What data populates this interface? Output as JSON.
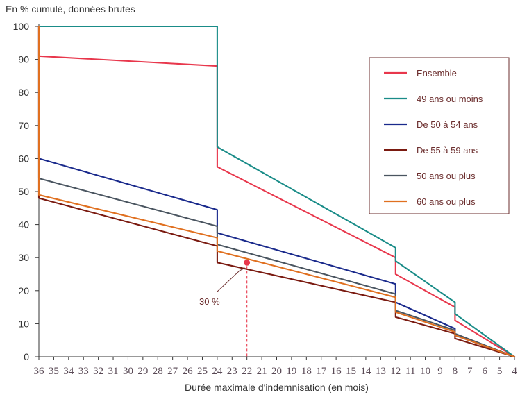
{
  "chart_data": {
    "type": "line",
    "title": "",
    "ylabel": "En % cumulé, données brutes",
    "xlabel": "Durée maximale d'indemnisation (en mois)",
    "ylim": [
      0,
      100
    ],
    "yticks": [
      0,
      10,
      20,
      30,
      40,
      50,
      60,
      70,
      80,
      90,
      100
    ],
    "xlim": [
      36,
      4
    ],
    "xticks": [
      36,
      35,
      34,
      33,
      32,
      31,
      30,
      29,
      28,
      27,
      26,
      25,
      24,
      23,
      22,
      21,
      20,
      19,
      18,
      17,
      16,
      15,
      14,
      13,
      12,
      11,
      10,
      9,
      8,
      7,
      6,
      5,
      4
    ],
    "legend_position": "top-right",
    "grid": false,
    "series": [
      {
        "name": "Ensemble",
        "color": "#e8374c",
        "points": [
          [
            36,
            100
          ],
          [
            36,
            91
          ],
          [
            24,
            88
          ],
          [
            24,
            57.5
          ],
          [
            12,
            30
          ],
          [
            12,
            25
          ],
          [
            8,
            15
          ],
          [
            8,
            11
          ],
          [
            4,
            0
          ]
        ]
      },
      {
        "name": "49 ans ou moins",
        "color": "#1a8c88",
        "points": [
          [
            36,
            100
          ],
          [
            24,
            100
          ],
          [
            24,
            63.5
          ],
          [
            12,
            33
          ],
          [
            12,
            29
          ],
          [
            8,
            16.5
          ],
          [
            8,
            13
          ],
          [
            4,
            0
          ]
        ]
      },
      {
        "name": "De 50 à 54 ans",
        "color": "#1a2a8c",
        "points": [
          [
            36,
            100
          ],
          [
            36,
            60
          ],
          [
            24,
            44.5
          ],
          [
            24,
            37.5
          ],
          [
            12,
            22
          ],
          [
            12,
            16.5
          ],
          [
            8,
            8.5
          ],
          [
            8,
            6.5
          ],
          [
            4,
            0
          ]
        ]
      },
      {
        "name": "De 55 à 59 ans",
        "color": "#7a1a10",
        "points": [
          [
            36,
            100
          ],
          [
            36,
            48
          ],
          [
            24,
            33.5
          ],
          [
            24,
            28.5
          ],
          [
            12,
            16.5
          ],
          [
            12,
            12
          ],
          [
            8,
            7
          ],
          [
            8,
            5.5
          ],
          [
            4,
            0
          ]
        ]
      },
      {
        "name": "50 ans ou plus",
        "color": "#4a5560",
        "points": [
          [
            36,
            100
          ],
          [
            36,
            54
          ],
          [
            24,
            39.5
          ],
          [
            24,
            34
          ],
          [
            12,
            19
          ],
          [
            12,
            14
          ],
          [
            8,
            8
          ],
          [
            8,
            7
          ],
          [
            4,
            0
          ]
        ]
      },
      {
        "name": "60 ans ou plus",
        "color": "#e07020",
        "points": [
          [
            36,
            100
          ],
          [
            36,
            49
          ],
          [
            24,
            36
          ],
          [
            24,
            32
          ],
          [
            12,
            18
          ],
          [
            12,
            13.5
          ],
          [
            8,
            7.5
          ],
          [
            8,
            6.5
          ],
          [
            4,
            0
          ]
        ]
      }
    ],
    "annotations": [
      {
        "label": "30 %",
        "point": [
          22,
          28.5
        ],
        "dashed_drop_to_axis": true,
        "color": "#e8374c"
      }
    ]
  }
}
